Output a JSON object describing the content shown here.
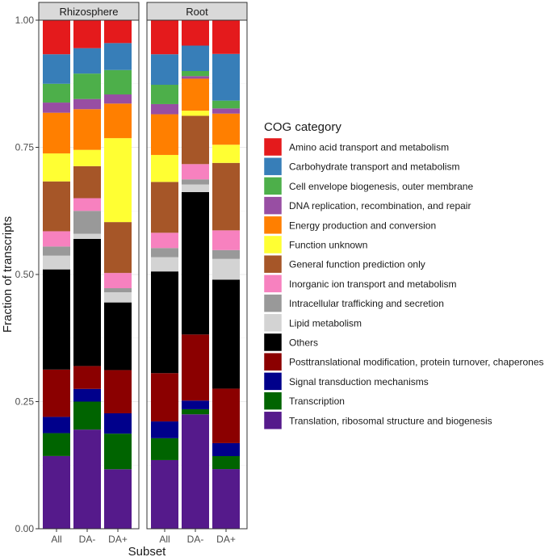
{
  "chart_data": {
    "type": "bar",
    "stacked": true,
    "xlabel": "Subset",
    "ylabel": "Fraction of transcripts",
    "ylim": [
      0,
      1
    ],
    "yticks": [
      "0.00",
      "0.25",
      "0.50",
      "0.75",
      "1.00"
    ],
    "categories": [
      "All",
      "DA-",
      "DA+"
    ],
    "legend": {
      "title": "COG category",
      "position": "right"
    },
    "panels": [
      {
        "name": "Rhizosphere",
        "bars": [
          {
            "category": "All",
            "fractions": {
              "Amino acid transport and metabolism": 0.067,
              "Carbohydrate transport and metabolism": 0.058,
              "Cell envelope biogenesis, outer membrane": 0.037,
              "DNA replication, recombination, and repair": 0.02,
              "Energy production and conversion": 0.08,
              "Function unknown": 0.055,
              "General function prediction only": 0.098,
              "Inorganic ion transport and metabolism": 0.03,
              "Intracellular trafficking and secretion": 0.018,
              "Lipid metabolism": 0.027,
              "Others": 0.197,
              "Posttranslational modification, protein turnover, chaperones": 0.093,
              "Signal transduction mechanisms": 0.032,
              "Transcription": 0.045,
              "Translation, ribosomal structure and biogenesis": 0.143
            }
          },
          {
            "category": "DA-",
            "fractions": {
              "Amino acid transport and metabolism": 0.055,
              "Carbohydrate transport and metabolism": 0.05,
              "Cell envelope biogenesis, outer membrane": 0.05,
              "DNA replication, recombination, and repair": 0.02,
              "Energy production and conversion": 0.08,
              "Function unknown": 0.032,
              "General function prediction only": 0.063,
              "Inorganic ion transport and metabolism": 0.025,
              "Intracellular trafficking and secretion": 0.045,
              "Lipid metabolism": 0.01,
              "Others": 0.25,
              "Posttranslational modification, protein turnover, chaperones": 0.045,
              "Signal transduction mechanisms": 0.025,
              "Transcription": 0.055,
              "Translation, ribosomal structure and biogenesis": 0.195
            }
          },
          {
            "category": "DA+",
            "fractions": {
              "Amino acid transport and metabolism": 0.045,
              "Carbohydrate transport and metabolism": 0.053,
              "Cell envelope biogenesis, outer membrane": 0.048,
              "DNA replication, recombination, and repair": 0.018,
              "Energy production and conversion": 0.068,
              "Function unknown": 0.165,
              "General function prediction only": 0.1,
              "Inorganic ion transport and metabolism": 0.03,
              "Intracellular trafficking and secretion": 0.008,
              "Lipid metabolism": 0.02,
              "Others": 0.133,
              "Posttranslational modification, protein turnover, chaperones": 0.085,
              "Signal transduction mechanisms": 0.04,
              "Transcription": 0.07,
              "Translation, ribosomal structure and biogenesis": 0.117
            }
          }
        ]
      },
      {
        "name": "Root",
        "bars": [
          {
            "category": "All",
            "fractions": {
              "Amino acid transport and metabolism": 0.067,
              "Carbohydrate transport and metabolism": 0.06,
              "Cell envelope biogenesis, outer membrane": 0.038,
              "DNA replication, recombination, and repair": 0.02,
              "Energy production and conversion": 0.08,
              "Function unknown": 0.053,
              "General function prediction only": 0.1,
              "Inorganic ion transport and metabolism": 0.03,
              "Intracellular trafficking and secretion": 0.018,
              "Lipid metabolism": 0.028,
              "Others": 0.2,
              "Posttranslational modification, protein turnover, chaperones": 0.095,
              "Signal transduction mechanisms": 0.033,
              "Transcription": 0.043,
              "Translation, ribosomal structure and biogenesis": 0.135
            }
          },
          {
            "category": "DA-",
            "fractions": {
              "Amino acid transport and metabolism": 0.05,
              "Carbohydrate transport and metabolism": 0.05,
              "Cell envelope biogenesis, outer membrane": 0.01,
              "DNA replication, recombination, and repair": 0.005,
              "Energy production and conversion": 0.063,
              "Function unknown": 0.01,
              "General function prediction only": 0.095,
              "Inorganic ion transport and metabolism": 0.03,
              "Intracellular trafficking and secretion": 0.01,
              "Lipid metabolism": 0.015,
              "Others": 0.28,
              "Posttranslational modification, protein turnover, chaperones": 0.13,
              "Signal transduction mechanisms": 0.017,
              "Transcription": 0.01,
              "Translation, ribosomal structure and biogenesis": 0.225
            }
          },
          {
            "category": "DA+",
            "fractions": {
              "Amino acid transport and metabolism": 0.065,
              "Carbohydrate transport and metabolism": 0.09,
              "Cell envelope biogenesis, outer membrane": 0.015,
              "DNA replication, recombination, and repair": 0.01,
              "Energy production and conversion": 0.06,
              "Function unknown": 0.035,
              "General function prediction only": 0.13,
              "Inorganic ion transport and metabolism": 0.038,
              "Intracellular trafficking and secretion": 0.017,
              "Lipid metabolism": 0.04,
              "Others": 0.21,
              "Posttranslational modification, protein turnover, chaperones": 0.105,
              "Signal transduction mechanisms": 0.025,
              "Transcription": 0.025,
              "Translation, ribosomal structure and biogenesis": 0.115
            }
          }
        ]
      }
    ],
    "series": [
      {
        "name": "Amino acid transport and metabolism",
        "color": "#e41a1c"
      },
      {
        "name": "Carbohydrate transport and metabolism",
        "color": "#377eb8"
      },
      {
        "name": "Cell envelope biogenesis, outer membrane",
        "color": "#4daf4a"
      },
      {
        "name": "DNA replication, recombination, and repair",
        "color": "#984ea3"
      },
      {
        "name": "Energy production and conversion",
        "color": "#ff7f00"
      },
      {
        "name": "Function unknown",
        "color": "#ffff33"
      },
      {
        "name": "General function prediction only",
        "color": "#a65628"
      },
      {
        "name": "Inorganic ion transport and metabolism",
        "color": "#f781bf"
      },
      {
        "name": "Intracellular trafficking and secretion",
        "color": "#999999"
      },
      {
        "name": "Lipid metabolism",
        "color": "#d3d3d3"
      },
      {
        "name": "Others",
        "color": "#000000"
      },
      {
        "name": "Posttranslational modification, protein turnover, chaperones",
        "color": "#8b0000"
      },
      {
        "name": "Signal transduction mechanisms",
        "color": "#00008b"
      },
      {
        "name": "Transcription",
        "color": "#006400"
      },
      {
        "name": "Translation, ribosomal structure and biogenesis",
        "color": "#551a8b"
      }
    ],
    "stack_order_bottom_to_top": [
      "Translation, ribosomal structure and biogenesis",
      "Transcription",
      "Signal transduction mechanisms",
      "Posttranslational modification, protein turnover, chaperones",
      "Others",
      "Lipid metabolism",
      "Intracellular trafficking and secretion",
      "Inorganic ion transport and metabolism",
      "General function prediction only",
      "Function unknown",
      "Energy production and conversion",
      "DNA replication, recombination, and repair",
      "Cell envelope biogenesis, outer membrane",
      "Carbohydrate transport and metabolism",
      "Amino acid transport and metabolism"
    ],
    "grid": true,
    "facet_strip_color": "#d9d9d9"
  }
}
